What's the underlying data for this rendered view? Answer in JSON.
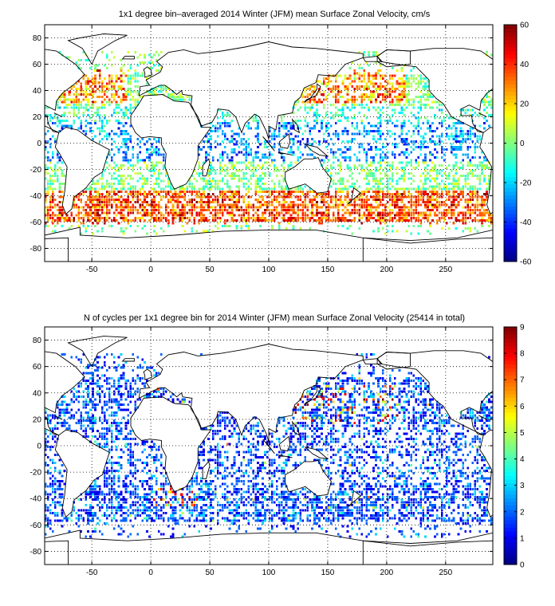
{
  "chart_data": [
    {
      "type": "heatmap",
      "title": "1x1 degree bin–averaged 2014 Winter (JFM) mean Surface Zonal Velocity, cm/s",
      "xlabel": "",
      "ylabel": "",
      "xlim": [
        -90,
        290
      ],
      "ylim": [
        -90,
        90
      ],
      "x_ticks": [
        -50,
        0,
        50,
        100,
        150,
        200,
        250
      ],
      "y_ticks": [
        80,
        60,
        40,
        20,
        0,
        -20,
        -40,
        -60,
        -80
      ],
      "colorbar": {
        "min": -60,
        "max": 60,
        "ticks": [
          60,
          40,
          20,
          0,
          -20,
          -40,
          -60
        ],
        "colormap": "jet"
      },
      "grid": "dotted",
      "coastlines": true,
      "sample_bins": [
        {
          "lon": -70,
          "lat": 38,
          "value": 45
        },
        {
          "lon": -60,
          "lat": 40,
          "value": 38
        },
        {
          "lon": -45,
          "lat": 45,
          "value": 30
        },
        {
          "lon": -30,
          "lat": 50,
          "value": 18
        },
        {
          "lon": 145,
          "lat": 36,
          "value": 50
        },
        {
          "lon": 160,
          "lat": 38,
          "value": 32
        },
        {
          "lon": 180,
          "lat": 40,
          "value": 20
        },
        {
          "lon": 20,
          "lat": -45,
          "value": 42
        },
        {
          "lon": 60,
          "lat": -48,
          "value": 35
        },
        {
          "lon": 120,
          "lat": -52,
          "value": 30
        },
        {
          "lon": 200,
          "lat": -55,
          "value": 40
        },
        {
          "lon": -20,
          "lat": 2,
          "value": -25
        },
        {
          "lon": 150,
          "lat": 5,
          "value": -30
        },
        {
          "lon": 230,
          "lat": 3,
          "value": -20
        }
      ]
    },
    {
      "type": "heatmap",
      "title": "N of cycles per 1x1 degree bin for 2014 Winter (JFM) mean Surface Zonal Velocity (25414 in total)",
      "xlabel": "",
      "ylabel": "",
      "xlim": [
        -90,
        290
      ],
      "ylim": [
        -90,
        90
      ],
      "x_ticks": [
        -50,
        0,
        50,
        100,
        150,
        200,
        250
      ],
      "y_ticks": [
        80,
        60,
        40,
        20,
        0,
        -20,
        -40,
        -60,
        -80
      ],
      "colorbar": {
        "min": 0,
        "max": 9,
        "ticks": [
          9,
          8,
          7,
          6,
          5,
          4,
          3,
          2,
          1,
          0
        ],
        "colormap": "jet"
      },
      "grid": "dotted",
      "coastlines": true,
      "sample_bins": [
        {
          "lon": 145,
          "lat": 35,
          "value": 8
        },
        {
          "lon": 130,
          "lat": 20,
          "value": 7
        },
        {
          "lon": 200,
          "lat": 22,
          "value": 8
        },
        {
          "lon": 25,
          "lat": -38,
          "value": 8
        },
        {
          "lon": 5,
          "lat": 42,
          "value": 7
        },
        {
          "lon": -40,
          "lat": 30,
          "value": 2
        },
        {
          "lon": 100,
          "lat": -40,
          "value": 2
        },
        {
          "lon": 250,
          "lat": -10,
          "value": 2
        }
      ]
    }
  ]
}
